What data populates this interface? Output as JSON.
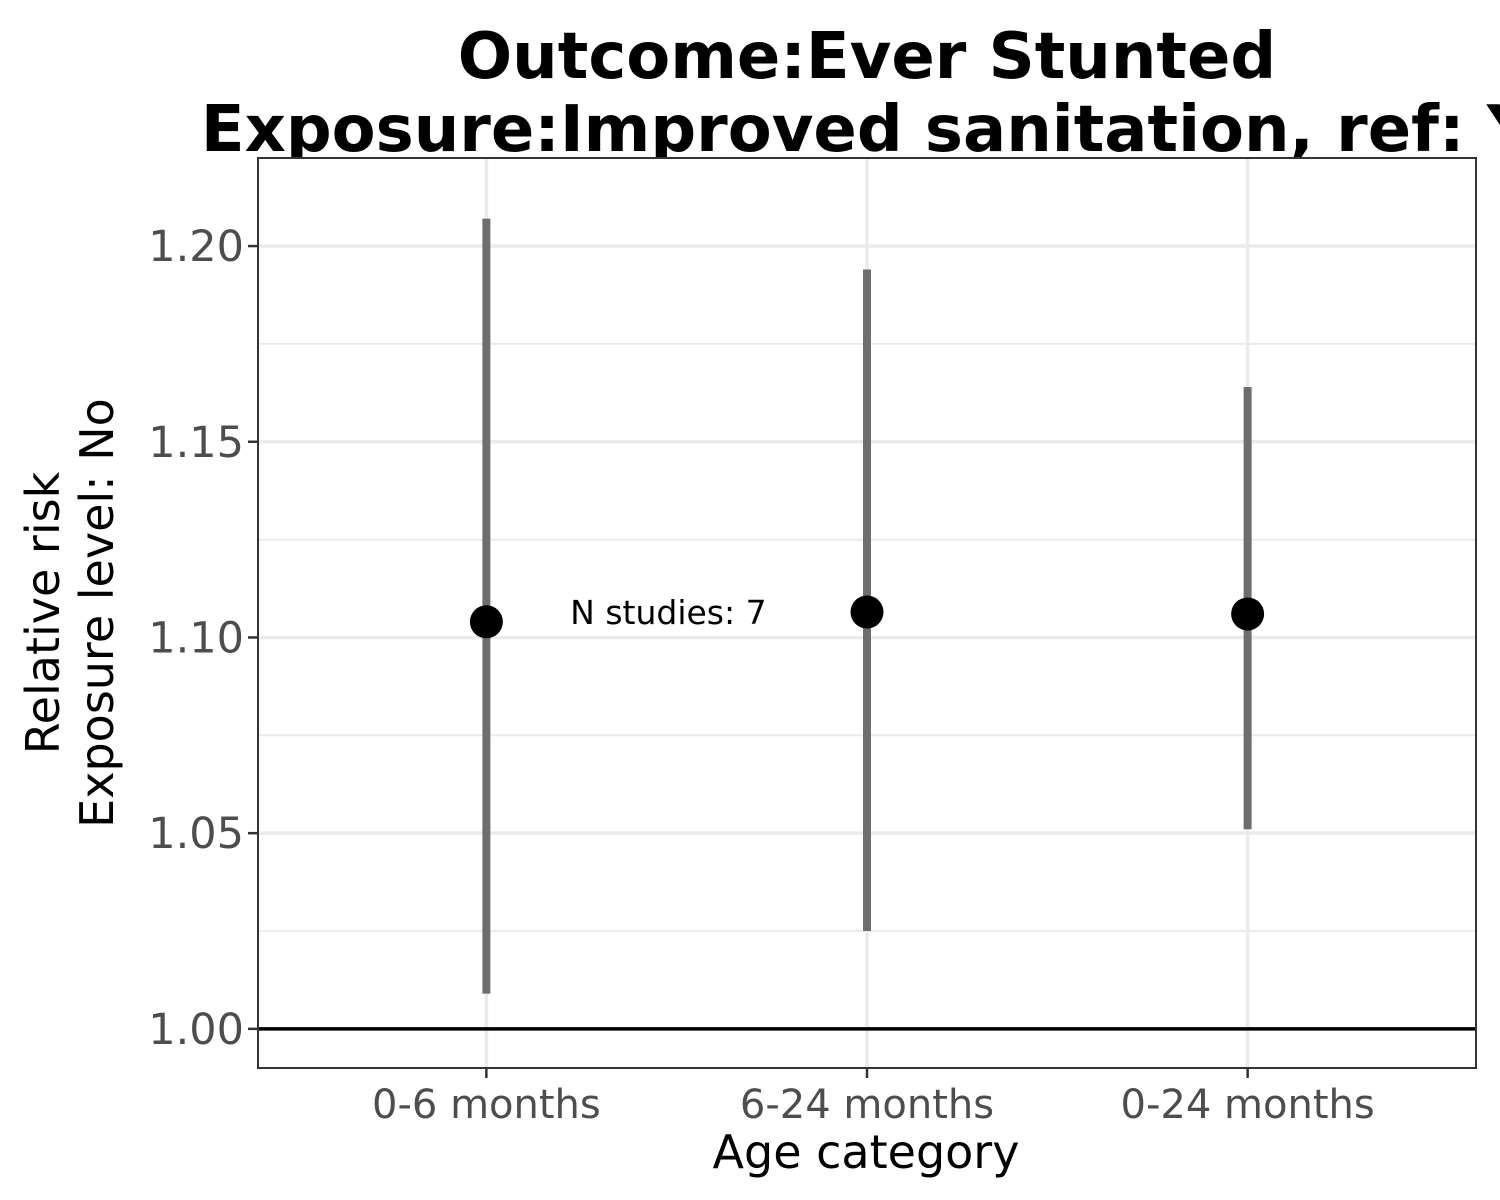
{
  "chart_data": {
    "type": "scatter",
    "title": [
      "Outcome:Ever Stunted",
      "Exposure:Improved sanitation, ref: Y"
    ],
    "xlabel": "Age category",
    "ylabel": [
      "Relative risk",
      "Exposure level: No"
    ],
    "categories": [
      "0-6 months",
      "6-24 months",
      "0-24 months"
    ],
    "estimates": [
      1.104,
      1.1065,
      1.106
    ],
    "ci_lower": [
      1.009,
      1.025,
      1.051
    ],
    "ci_upper": [
      1.207,
      1.194,
      1.164
    ],
    "ylim": [
      0.99,
      1.2225
    ],
    "yticks": [
      1.0,
      1.05,
      1.1,
      1.15,
      1.2
    ],
    "ytick_labels": [
      "1.00",
      "1.05",
      "1.10",
      "1.15",
      "1.20"
    ],
    "reference_line": 1.0,
    "annotation": {
      "text": "N studies: 7",
      "x_category": "0-6 months",
      "y": 1.1065
    },
    "grid": true,
    "colors": {
      "point": "#000000",
      "errorbar": "#6e6e6e",
      "grid": "#ebebeb",
      "reference": "#000000"
    }
  }
}
